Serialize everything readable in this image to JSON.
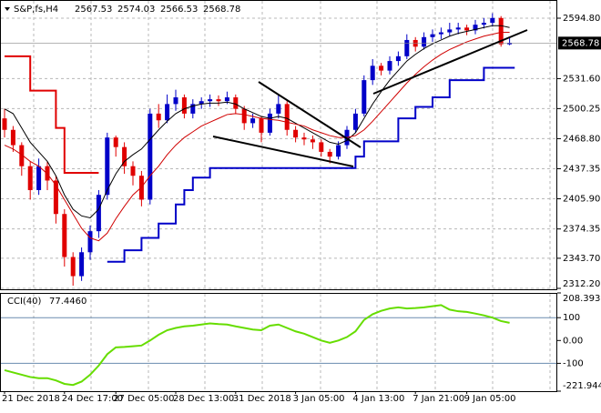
{
  "chart_data": [
    {
      "type": "candlestick",
      "title": "S&P,fs,H4",
      "categories": [
        "21 Dec 2018",
        null,
        null,
        null,
        null,
        null,
        null,
        "24 Dec 17:00",
        null,
        null,
        null,
        null,
        null,
        "27 Dec 05:00",
        null,
        null,
        null,
        null,
        null,
        null,
        "28 Dec 13:00",
        null,
        null,
        null,
        null,
        null,
        null,
        "31 Dec 2018",
        null,
        null,
        null,
        null,
        null,
        null,
        "3 Jan 05:00",
        null,
        null,
        null,
        null,
        null,
        null,
        "4 Jan 13:00",
        null,
        null,
        null,
        null,
        null,
        null,
        "7 Jan 21:00",
        null,
        null,
        null,
        null,
        null,
        "9 Jan 05:00",
        null,
        null,
        null,
        null,
        null
      ],
      "candles": [
        [
          2490,
          2500,
          2470,
          2478
        ],
        [
          2478,
          2482,
          2455,
          2462
        ],
        [
          2462,
          2465,
          2430,
          2440
        ],
        [
          2440,
          2445,
          2405,
          2415
        ],
        [
          2415,
          2448,
          2410,
          2440
        ],
        [
          2440,
          2445,
          2415,
          2425
        ],
        [
          2425,
          2430,
          2380,
          2390
        ],
        [
          2390,
          2395,
          2335,
          2345
        ],
        [
          2345,
          2350,
          2315,
          2325
        ],
        [
          2325,
          2355,
          2320,
          2350
        ],
        [
          2350,
          2378,
          2342,
          2372
        ],
        [
          2372,
          2415,
          2365,
          2410
        ],
        [
          2410,
          2475,
          2405,
          2470
        ],
        [
          2470,
          2472,
          2450,
          2460
        ],
        [
          2460,
          2465,
          2432,
          2440
        ],
        [
          2440,
          2445,
          2420,
          2430
        ],
        [
          2430,
          2435,
          2398,
          2405
        ],
        [
          2405,
          2500,
          2400,
          2495
        ],
        [
          2495,
          2505,
          2480,
          2488
        ],
        [
          2488,
          2515,
          2485,
          2505
        ],
        [
          2505,
          2520,
          2498,
          2512
        ],
        [
          2512,
          2515,
          2490,
          2495
        ],
        [
          2495,
          2510,
          2490,
          2505
        ],
        [
          2505,
          2512,
          2500,
          2508
        ],
        [
          2508,
          2515,
          2502,
          2510
        ],
        [
          2510,
          2514,
          2503,
          2508
        ],
        [
          2508,
          2518,
          2505,
          2512
        ],
        [
          2512,
          2515,
          2495,
          2500
        ],
        [
          2500,
          2503,
          2478,
          2485
        ],
        [
          2485,
          2495,
          2480,
          2490
        ],
        [
          2490,
          2492,
          2465,
          2475
        ],
        [
          2475,
          2500,
          2472,
          2495
        ],
        [
          2495,
          2515,
          2490,
          2505
        ],
        [
          2505,
          2508,
          2472,
          2478
        ],
        [
          2478,
          2482,
          2465,
          2470
        ],
        [
          2470,
          2475,
          2462,
          2468
        ],
        [
          2468,
          2472,
          2458,
          2465
        ],
        [
          2465,
          2468,
          2450,
          2455
        ],
        [
          2455,
          2458,
          2443,
          2450
        ],
        [
          2450,
          2466,
          2447,
          2462
        ],
        [
          2462,
          2482,
          2458,
          2478
        ],
        [
          2478,
          2500,
          2475,
          2495
        ],
        [
          2495,
          2535,
          2492,
          2530
        ],
        [
          2530,
          2552,
          2525,
          2545
        ],
        [
          2545,
          2548,
          2535,
          2540
        ],
        [
          2540,
          2555,
          2536,
          2550
        ],
        [
          2550,
          2560,
          2545,
          2555
        ],
        [
          2555,
          2578,
          2552,
          2572
        ],
        [
          2572,
          2575,
          2560,
          2565
        ],
        [
          2565,
          2580,
          2562,
          2575
        ],
        [
          2575,
          2583,
          2570,
          2578
        ],
        [
          2578,
          2585,
          2573,
          2580
        ],
        [
          2580,
          2590,
          2576,
          2583
        ],
        [
          2583,
          2590,
          2578,
          2585
        ],
        [
          2585,
          2588,
          2577,
          2582
        ],
        [
          2582,
          2593,
          2578,
          2588
        ],
        [
          2588,
          2595,
          2584,
          2590
        ],
        [
          2590,
          2600,
          2586,
          2595
        ],
        [
          2595,
          2597,
          2565,
          2567.53
        ],
        [
          2567.53,
          2574.03,
          2566.53,
          2568.78
        ]
      ],
      "up_color": "#0000c8",
      "down_color": "#e00000",
      "series": [
        {
          "color": "#000000",
          "style": "line",
          "values": [
            2500,
            2495,
            2480,
            2465,
            2455,
            2445,
            2430,
            2410,
            2395,
            2388,
            2386,
            2395,
            2415,
            2432,
            2445,
            2452,
            2458,
            2468,
            2478,
            2487,
            2495,
            2500,
            2503,
            2505,
            2506,
            2506,
            2507,
            2505,
            2500,
            2496,
            2492,
            2490,
            2492,
            2490,
            2485,
            2480,
            2475,
            2470,
            2465,
            2463,
            2467,
            2475,
            2490,
            2505,
            2518,
            2530,
            2540,
            2550,
            2557,
            2563,
            2568,
            2572,
            2576,
            2579,
            2581,
            2583,
            2585,
            2587,
            2587,
            2585
          ]
        },
        {
          "color": "#d00000",
          "style": "line",
          "values": [
            2462,
            2458,
            2452,
            2445,
            2440,
            2432,
            2420,
            2405,
            2390,
            2375,
            2365,
            2362,
            2370,
            2385,
            2398,
            2410,
            2418,
            2430,
            2440,
            2452,
            2462,
            2470,
            2476,
            2482,
            2486,
            2490,
            2494,
            2495,
            2494,
            2492,
            2490,
            2489,
            2488,
            2486,
            2484,
            2482,
            2478,
            2475,
            2472,
            2470,
            2470,
            2472,
            2478,
            2487,
            2497,
            2507,
            2517,
            2527,
            2536,
            2544,
            2551,
            2557,
            2562,
            2566,
            2570,
            2573,
            2576,
            2578,
            2580,
            2580
          ]
        },
        {
          "color": "#e00000",
          "style": "step",
          "values": [
            2555,
            2555,
            2555,
            2519,
            2519,
            2519,
            2480,
            2433,
            2433,
            2433,
            2433,
            2433,
            null,
            null,
            null,
            null,
            null,
            null,
            null,
            null,
            null,
            null,
            null,
            null,
            null,
            null,
            null,
            null,
            null,
            null,
            null,
            null,
            null,
            null,
            null,
            null,
            null,
            null,
            null,
            null,
            null,
            null,
            null,
            null,
            null,
            null,
            null,
            null,
            null,
            null,
            null,
            null,
            null,
            null,
            null,
            null,
            null,
            null,
            null,
            null
          ]
        },
        {
          "color": "#0000c8",
          "style": "step",
          "values": [
            null,
            null,
            null,
            null,
            null,
            null,
            null,
            null,
            null,
            null,
            null,
            null,
            2340,
            2340,
            2352,
            2352,
            2365,
            2365,
            2380,
            2380,
            2400,
            2415,
            2428,
            2428,
            2438,
            2438,
            2438,
            2438,
            2438,
            2438,
            2438,
            2438,
            2438,
            2438,
            2438,
            2438,
            2438,
            2438,
            2438,
            2438,
            2438,
            2450,
            2466,
            2466,
            2466,
            2466,
            2490,
            2490,
            2502,
            2502,
            2512,
            2512,
            2530,
            2530,
            2530,
            2530,
            2543,
            2543,
            2543,
            2543
          ]
        }
      ],
      "ylim": [
        2311.25,
        2613.83
      ],
      "yticks": [
        {
          "value": 2594.8,
          "label": "2594.80"
        },
        {
          "value": 2531.6,
          "label": "2531.60"
        },
        2500.25,
        {
          "value": 2468.8,
          "label": "2468.80"
        },
        2437.35,
        {
          "value": 2405.9,
          "label": "2405.90"
        },
        2374.35,
        {
          "value": 2343.7,
          "label": "2343.70"
        },
        {
          "value": 2312.2,
          "label": "2312.20"
        }
      ],
      "grid": true
    },
    {
      "type": "line",
      "title": "CCI(40)",
      "value_label": "77.4460",
      "color": "#66dd00",
      "values": [
        -130,
        -140,
        -150,
        -160,
        -165,
        -165,
        -175,
        -190,
        -195,
        -180,
        -150,
        -110,
        -60,
        -30,
        -28,
        -25,
        -22,
        0,
        25,
        45,
        55,
        62,
        65,
        70,
        75,
        72,
        70,
        62,
        55,
        48,
        45,
        65,
        70,
        55,
        40,
        30,
        15,
        0,
        -10,
        0,
        15,
        40,
        90,
        115,
        130,
        140,
        145,
        140,
        142,
        145,
        150,
        155,
        135,
        128,
        125,
        118,
        110,
        100,
        85,
        77.446
      ],
      "ylim": [
        -221.9441,
        208.3938
      ],
      "yticks": [
        208.3938,
        100,
        {
          "value": 0,
          "label": "0.00"
        },
        -100,
        -221.9441
      ],
      "levels": [
        100,
        -100
      ]
    }
  ]
}
